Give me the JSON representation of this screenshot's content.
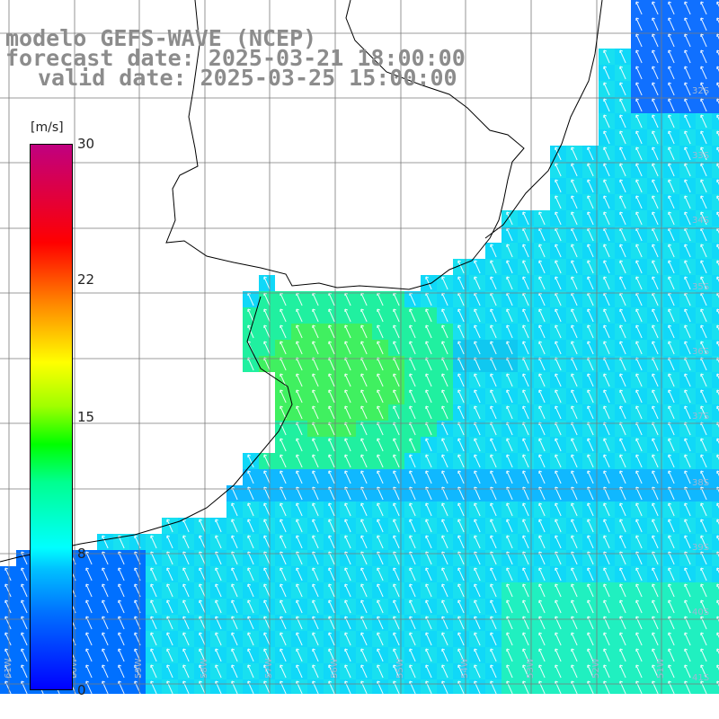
{
  "title": {
    "line1": "modelo GEFS-WAVE (NCEP)",
    "line2": "forecast date: 2025-03-21 18:00:00",
    "line3": "valid date: 2025-03-25 15:00:00"
  },
  "colorbar": {
    "unit": "[m/s]",
    "ticks": [
      "30",
      "22",
      "15",
      "8",
      "0"
    ],
    "colors": [
      "#0000ff",
      "#0080ff",
      "#00c8ff",
      "#00ffff",
      "#00ff80",
      "#00ff00",
      "#80ff00",
      "#ffff00",
      "#ff8000",
      "#ff0000",
      "#c00080"
    ]
  },
  "map": {
    "lat_labels": [
      "32S",
      "33S",
      "34S",
      "35S",
      "36S",
      "37S",
      "38S",
      "39S",
      "40S",
      "41S"
    ],
    "lon_labels": [
      "61W",
      "60W",
      "59W",
      "58W",
      "57W",
      "56W",
      "55W",
      "54W",
      "53W",
      "52W",
      "51W"
    ],
    "grid": true,
    "wind_direction": "from south-east (arrows point north-west)"
  }
}
